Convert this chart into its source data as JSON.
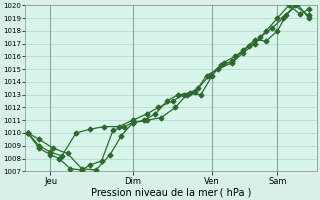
{
  "xlabel": "Pression niveau de la mer ( hPa )",
  "ylim": [
    1007,
    1020
  ],
  "yticks": [
    1007,
    1008,
    1009,
    1010,
    1011,
    1012,
    1013,
    1014,
    1015,
    1016,
    1017,
    1018,
    1019,
    1020
  ],
  "xtick_labels": [
    "Jeu",
    "Dim",
    "Ven",
    "Sam"
  ],
  "xtick_positions": [
    0.08,
    0.37,
    0.65,
    0.88
  ],
  "bg_color": "#d8f0e8",
  "plot_bg_color": "#d8f5ec",
  "grid_color": "#b0c8c0",
  "line_color": "#2d6a2d",
  "series1_x": [
    0.0,
    0.04,
    0.08,
    0.11,
    0.15,
    0.19,
    0.22,
    0.26,
    0.3,
    0.34,
    0.37,
    0.41,
    0.45,
    0.49,
    0.53,
    0.57,
    0.61,
    0.65,
    0.68,
    0.72,
    0.76,
    0.8,
    0.84,
    0.88,
    0.91,
    0.95,
    0.99
  ],
  "series1_y": [
    1010.0,
    1008.8,
    1008.3,
    1008.0,
    1007.2,
    1007.1,
    1007.5,
    1007.8,
    1010.2,
    1010.5,
    1010.8,
    1011.0,
    1011.5,
    1012.5,
    1013.0,
    1013.1,
    1013.0,
    1014.5,
    1015.3,
    1015.6,
    1016.5,
    1017.3,
    1017.2,
    1018.0,
    1019.2,
    1020.1,
    1019.0
  ],
  "series2_x": [
    0.0,
    0.04,
    0.08,
    0.12,
    0.17,
    0.22,
    0.27,
    0.32,
    0.37,
    0.42,
    0.46,
    0.51,
    0.55,
    0.59,
    0.63,
    0.67,
    0.72,
    0.76,
    0.8,
    0.84,
    0.88,
    0.92,
    0.96,
    0.99
  ],
  "series2_y": [
    1010.0,
    1009.0,
    1008.5,
    1008.2,
    1010.0,
    1010.3,
    1010.5,
    1010.5,
    1011.0,
    1011.5,
    1012.0,
    1012.5,
    1013.0,
    1013.2,
    1014.5,
    1015.0,
    1015.5,
    1016.3,
    1017.0,
    1018.0,
    1019.0,
    1020.0,
    1019.3,
    1019.7
  ],
  "series3_x": [
    0.0,
    0.04,
    0.09,
    0.14,
    0.19,
    0.24,
    0.29,
    0.33,
    0.37,
    0.42,
    0.47,
    0.52,
    0.56,
    0.6,
    0.64,
    0.69,
    0.73,
    0.78,
    0.82,
    0.86,
    0.9,
    0.94,
    0.99
  ],
  "series3_y": [
    1010.0,
    1009.5,
    1008.8,
    1008.4,
    1007.2,
    1007.1,
    1008.3,
    1009.8,
    1010.8,
    1011.0,
    1011.2,
    1012.0,
    1013.0,
    1013.5,
    1014.5,
    1015.5,
    1016.0,
    1016.8,
    1017.5,
    1018.2,
    1019.0,
    1020.0,
    1019.2
  ],
  "vline_positions": [
    0.08,
    0.37,
    0.65,
    0.88
  ],
  "markersize": 2.5,
  "linewidth": 0.9
}
